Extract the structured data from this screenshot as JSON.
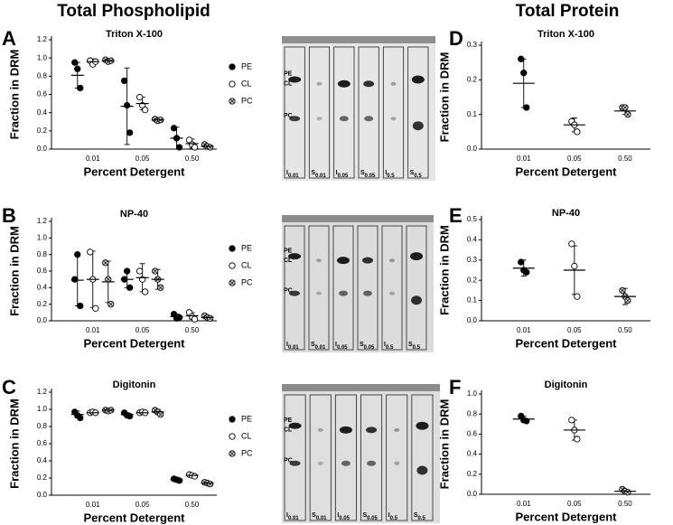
{
  "headers": {
    "left": "Total Phospholipid",
    "right": "Total Protein"
  },
  "panels": [
    "A",
    "B",
    "C",
    "D",
    "E",
    "F"
  ],
  "tlc": {
    "bands": [
      "PE",
      "CL",
      "PC"
    ],
    "lanes": [
      {
        "main": "I",
        "sub": "0.01"
      },
      {
        "main": "S",
        "sub": "0.01"
      },
      {
        "main": "I",
        "sub": "0.05"
      },
      {
        "main": "S",
        "sub": "0.05"
      },
      {
        "main": "I",
        "sub": "0.5"
      },
      {
        "main": "S",
        "sub": "0.5"
      }
    ]
  },
  "chart_data": [
    {
      "type": "dot",
      "title": "Triton X-100",
      "y_label": "Fraction in DRM",
      "x_label": "Percent Detergent",
      "categories": [
        "0.01",
        "0.05",
        "0.50"
      ],
      "ylim": [
        0,
        1.2
      ],
      "yticks": [
        {
          "value": 0,
          "label": "0.0"
        },
        0.2,
        0.4,
        0.6,
        0.8,
        {
          "value": 1,
          "label": "1.0"
        },
        1.2
      ],
      "legend": "right",
      "series": [
        {
          "name": "PE",
          "marker": "filled",
          "color": "#000000",
          "values": [
            [
              0.95,
              0.88,
              0.67
            ],
            [
              0.75,
              0.48,
              0.18
            ],
            [
              0.23,
              0.12,
              0.02
            ]
          ],
          "means": [
            0.81,
            0.47,
            0.12
          ],
          "errors": [
            0.14,
            0.42,
            0.12
          ]
        },
        {
          "name": "CL",
          "marker": "open",
          "color": "#000000",
          "values": [
            [
              0.97,
              0.93,
              0.96
            ],
            [
              0.57,
              0.48,
              0.43
            ],
            [
              0.1,
              0.05,
              0.02
            ]
          ],
          "means": [
            0.96,
            0.5,
            0.06
          ],
          "errors": [
            0.03,
            0.07,
            0.05
          ]
        },
        {
          "name": "PC",
          "marker": "crossed",
          "color": "#000000",
          "values": [
            [
              0.98,
              0.96,
              0.97
            ],
            [
              0.33,
              0.31,
              0.32
            ],
            [
              0.05,
              0.03,
              0.02
            ]
          ],
          "means": [
            0.97,
            0.32,
            0.03
          ],
          "errors": [
            0.02,
            0.02,
            0.02
          ]
        }
      ]
    },
    {
      "type": "dot",
      "title": "NP-40",
      "y_label": "Fraction in DRM",
      "x_label": "Percent Detergent",
      "categories": [
        "0.01",
        "0.05",
        "0.50"
      ],
      "ylim": [
        0,
        1.2
      ],
      "yticks": [
        {
          "value": 0,
          "label": "0.0"
        },
        0.2,
        0.4,
        0.6,
        0.8,
        {
          "value": 1,
          "label": "1.0"
        },
        1.2
      ],
      "legend": "right",
      "series": [
        {
          "name": "PE",
          "marker": "filled",
          "color": "#000000",
          "values": [
            [
              0.5,
              0.8,
              0.18
            ],
            [
              0.5,
              0.6,
              0.4
            ],
            [
              0.08,
              0.03,
              0.04
            ]
          ],
          "means": [
            0.49,
            0.5,
            0.05
          ],
          "errors": [
            0.31,
            0.1,
            0.03
          ]
        },
        {
          "name": "CL",
          "marker": "open",
          "color": "#000000",
          "values": [
            [
              0.83,
              0.5,
              0.15
            ],
            [
              0.6,
              0.5,
              0.35
            ],
            [
              0.1,
              0.05,
              0.02
            ]
          ],
          "means": [
            0.5,
            0.52,
            0.06
          ],
          "errors": [
            0.34,
            0.17,
            0.04
          ]
        },
        {
          "name": "PC",
          "marker": "crossed",
          "color": "#000000",
          "values": [
            [
              0.7,
              0.5,
              0.2
            ],
            [
              0.6,
              0.5,
              0.4
            ],
            [
              0.06,
              0.04,
              0.03
            ]
          ],
          "means": [
            0.47,
            0.5,
            0.04
          ],
          "errors": [
            0.25,
            0.12,
            0.02
          ]
        }
      ]
    },
    {
      "type": "dot",
      "title": "Digitonin",
      "y_label": "Fraction in DRM",
      "x_label": "Percent Detergent",
      "categories": [
        "0.01",
        "0.05",
        "0.50"
      ],
      "ylim": [
        0,
        1.2
      ],
      "yticks": [
        {
          "value": 0,
          "label": "0.0"
        },
        0.2,
        0.4,
        0.6,
        0.8,
        {
          "value": 1,
          "label": "1.0"
        },
        1.2
      ],
      "legend": "right",
      "series": [
        {
          "name": "PE",
          "marker": "filled",
          "color": "#000000",
          "values": [
            [
              0.97,
              0.93,
              0.9
            ],
            [
              0.96,
              0.93,
              0.92
            ],
            [
              0.19,
              0.18,
              0.17
            ]
          ],
          "means": [
            0.94,
            0.94,
            0.18
          ],
          "errors": [
            0.04,
            0.02,
            0.01
          ]
        },
        {
          "name": "CL",
          "marker": "open",
          "color": "#000000",
          "values": [
            [
              0.96,
              0.97,
              0.96
            ],
            [
              0.96,
              0.97,
              0.96
            ],
            [
              0.24,
              0.23,
              0.22
            ]
          ],
          "means": [
            0.96,
            0.96,
            0.23
          ],
          "errors": [
            0.01,
            0.01,
            0.01
          ]
        },
        {
          "name": "PC",
          "marker": "crossed",
          "color": "#000000",
          "values": [
            [
              0.99,
              0.98,
              0.99
            ],
            [
              0.99,
              0.97,
              0.94
            ],
            [
              0.15,
              0.14,
              0.13
            ]
          ],
          "means": [
            0.99,
            0.97,
            0.14
          ],
          "errors": [
            0.01,
            0.03,
            0.01
          ]
        }
      ]
    },
    {
      "type": "dot",
      "title": "Triton X-100",
      "y_label": "Fraction in DRM",
      "x_label": "Percent Detergent",
      "categories": [
        "0.01",
        "0.05",
        "0.50"
      ],
      "ylim": [
        0,
        0.3
      ],
      "yticks": [
        {
          "value": 0,
          "label": "0.0"
        },
        0.1,
        0.2,
        0.3
      ],
      "color": "#000000",
      "markers": [
        "filled",
        "open",
        "crossed"
      ],
      "values": [
        [
          0.26,
          0.22,
          0.12
        ],
        [
          0.08,
          0.07,
          0.05
        ],
        [
          0.12,
          0.12,
          0.1
        ]
      ],
      "means": [
        0.19,
        0.07,
        0.11
      ],
      "errors": [
        0.07,
        0.02,
        0.01
      ]
    },
    {
      "type": "dot",
      "title": "NP-40",
      "y_label": "Fraction in DRM",
      "x_label": "Percent Detergent",
      "categories": [
        "0.01",
        "0.05",
        "0.50"
      ],
      "ylim": [
        0,
        0.5
      ],
      "yticks": [
        {
          "value": 0,
          "label": "0.0"
        },
        0.1,
        0.2,
        0.3,
        0.4,
        0.5
      ],
      "color": "#000000",
      "markers": [
        "filled",
        "open",
        "crossed"
      ],
      "values": [
        [
          0.29,
          0.25,
          0.24
        ],
        [
          0.38,
          0.27,
          0.12
        ],
        [
          0.15,
          0.12,
          0.1
        ]
      ],
      "means": [
        0.26,
        0.25,
        0.12
      ],
      "errors": [
        0.04,
        0.12,
        0.04
      ]
    },
    {
      "type": "dot",
      "title": "Digitonin",
      "y_label": "Fraction in DRM",
      "x_label": "Percent Detergent",
      "categories": [
        "0.01",
        "0.05",
        "0.50"
      ],
      "ylim": [
        0,
        1
      ],
      "yticks": [
        {
          "value": 0,
          "label": "0.0"
        },
        0.2,
        0.4,
        0.6,
        0.8,
        {
          "value": 1,
          "label": "1.0"
        }
      ],
      "color": "#000000",
      "markers": [
        "filled",
        "open",
        "crossed"
      ],
      "values": [
        [
          0.78,
          0.74,
          0.73
        ],
        [
          0.74,
          0.64,
          0.55
        ],
        [
          0.05,
          0.03,
          0.02
        ]
      ],
      "means": [
        0.75,
        0.64,
        0.03
      ],
      "errors": [
        0.03,
        0.1,
        0.02
      ]
    }
  ]
}
